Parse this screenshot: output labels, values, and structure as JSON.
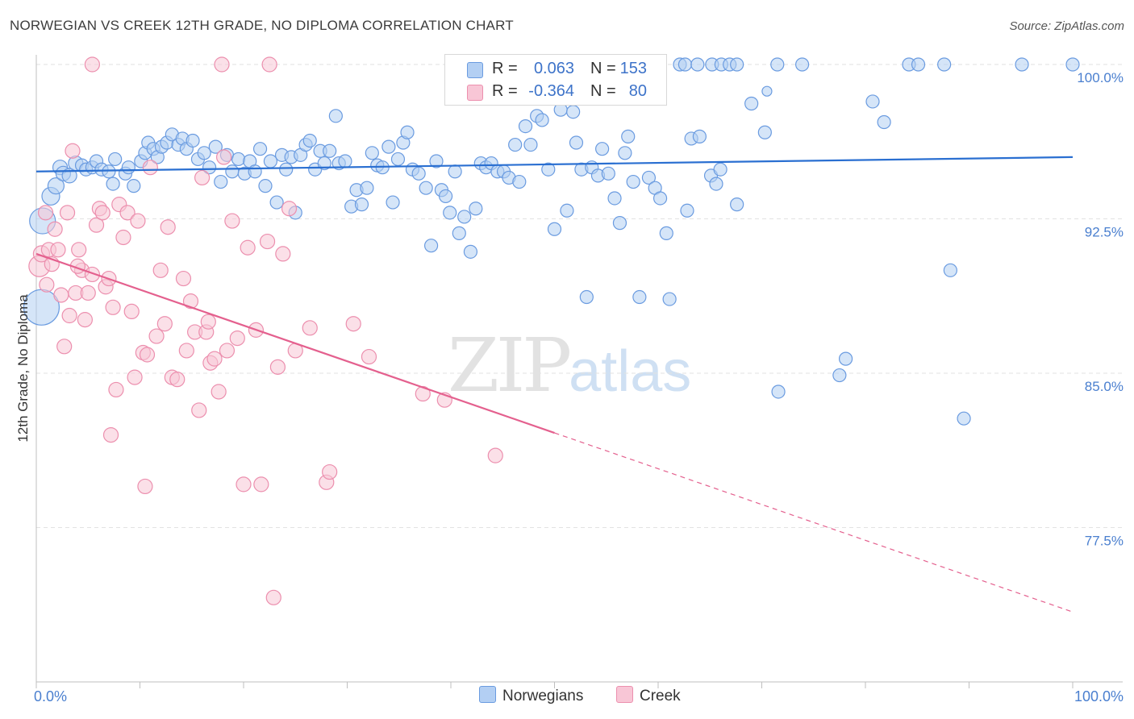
{
  "title": "NORWEGIAN VS CREEK 12TH GRADE, NO DIPLOMA CORRELATION CHART",
  "source": "Source: ZipAtlas.com",
  "watermark": {
    "zip": "ZIP",
    "atlas": "atlas"
  },
  "legend_top": [
    {
      "r_label": "R =",
      "r_value": "0.063",
      "n_label": "N =",
      "n_value": "153"
    },
    {
      "r_label": "R =",
      "r_value": "-0.364",
      "n_label": "N =",
      "n_value": "80"
    }
  ],
  "legend_bottom": [
    "Norwegians",
    "Creek"
  ],
  "colors": {
    "blue_fill": "#b3cff3",
    "blue_stroke": "#6a9be0",
    "blue_line": "#2a6fd1",
    "pink_fill": "#f8c6d6",
    "pink_stroke": "#ec8fae",
    "pink_line": "#e4608e",
    "tick_text": "#4a7fcf",
    "grid": "#e2e2e2"
  },
  "chart_data": {
    "type": "scatter",
    "title": "NORWEGIAN VS CREEK 12TH GRADE, NO DIPLOMA CORRELATION CHART",
    "xlabel": "",
    "ylabel": "12th Grade, No Diploma",
    "xlim": [
      0,
      100
    ],
    "ylim": [
      70.5,
      101.5
    ],
    "x_tick_labels": [
      "0.0%",
      "100.0%"
    ],
    "y_ticks": [
      77.5,
      85.0,
      92.5,
      100.0
    ],
    "y_tick_labels": [
      "77.5%",
      "85.0%",
      "92.5%",
      "100.0%"
    ],
    "grid": "horizontal dashed",
    "legend_position": "top-center and bottom-center",
    "series": [
      {
        "name": "Norwegians",
        "r": 0.063,
        "n": 153,
        "trend": {
          "x": [
            0,
            100
          ],
          "y": [
            94.8,
            95.5
          ],
          "style": "solid"
        },
        "points": [
          [
            0.5,
            88.2,
            22
          ],
          [
            0.6,
            92.4,
            16
          ],
          [
            1.4,
            93.6,
            11
          ],
          [
            1.9,
            94.1,
            10
          ],
          [
            2.3,
            95.0,
            9
          ],
          [
            2.6,
            94.7,
            9
          ],
          [
            3.2,
            94.6,
            9
          ],
          [
            3.8,
            95.2,
            9
          ],
          [
            4.4,
            95.1,
            8
          ],
          [
            4.8,
            94.9,
            8
          ],
          [
            5.4,
            95.0,
            8
          ],
          [
            5.8,
            95.3,
            8
          ],
          [
            6.3,
            94.9,
            8
          ],
          [
            7.0,
            94.8,
            8
          ],
          [
            7.4,
            94.2,
            8
          ],
          [
            7.6,
            95.4,
            8
          ],
          [
            8.6,
            94.7,
            8
          ],
          [
            8.9,
            95.0,
            8
          ],
          [
            9.4,
            94.1,
            8
          ],
          [
            10.1,
            95.3,
            8
          ],
          [
            10.5,
            95.7,
            8
          ],
          [
            10.8,
            96.2,
            8
          ],
          [
            11.3,
            95.9,
            8
          ],
          [
            11.7,
            95.5,
            8
          ],
          [
            12.1,
            96.0,
            8
          ],
          [
            12.6,
            96.2,
            8
          ],
          [
            13.1,
            96.6,
            8
          ],
          [
            13.7,
            96.1,
            8
          ],
          [
            14.1,
            96.4,
            8
          ],
          [
            14.5,
            95.9,
            8
          ],
          [
            15.1,
            96.3,
            8
          ],
          [
            15.6,
            95.4,
            8
          ],
          [
            16.2,
            95.7,
            8
          ],
          [
            16.7,
            95.0,
            8
          ],
          [
            17.3,
            96.0,
            8
          ],
          [
            17.8,
            94.3,
            8
          ],
          [
            18.4,
            95.6,
            8
          ],
          [
            18.9,
            94.8,
            8
          ],
          [
            19.5,
            95.4,
            8
          ],
          [
            20.1,
            94.7,
            8
          ],
          [
            20.6,
            95.3,
            8
          ],
          [
            21.1,
            94.8,
            8
          ],
          [
            21.6,
            95.9,
            8
          ],
          [
            22.1,
            94.1,
            8
          ],
          [
            22.6,
            95.3,
            8
          ],
          [
            23.2,
            93.3,
            8
          ],
          [
            23.7,
            95.6,
            8
          ],
          [
            24.1,
            94.9,
            8
          ],
          [
            24.6,
            95.5,
            8
          ],
          [
            25.0,
            92.8,
            8
          ],
          [
            25.5,
            95.6,
            8
          ],
          [
            26.0,
            96.1,
            8
          ],
          [
            26.4,
            96.3,
            8
          ],
          [
            26.9,
            94.9,
            8
          ],
          [
            27.4,
            95.8,
            8
          ],
          [
            27.8,
            95.2,
            8
          ],
          [
            28.3,
            95.8,
            8
          ],
          [
            28.9,
            97.5,
            8
          ],
          [
            29.2,
            95.2,
            8
          ],
          [
            29.8,
            95.3,
            8
          ],
          [
            30.4,
            93.1,
            8
          ],
          [
            30.9,
            93.9,
            8
          ],
          [
            31.4,
            93.2,
            8
          ],
          [
            31.9,
            94.0,
            8
          ],
          [
            32.4,
            95.7,
            8
          ],
          [
            32.9,
            95.1,
            8
          ],
          [
            33.4,
            95.0,
            8
          ],
          [
            34.0,
            96.0,
            8
          ],
          [
            34.4,
            93.3,
            8
          ],
          [
            34.9,
            95.4,
            8
          ],
          [
            35.4,
            96.2,
            8
          ],
          [
            35.8,
            96.7,
            8
          ],
          [
            36.3,
            94.9,
            8
          ],
          [
            36.9,
            94.7,
            8
          ],
          [
            37.6,
            94.0,
            8
          ],
          [
            38.1,
            91.2,
            8
          ],
          [
            38.6,
            95.3,
            8
          ],
          [
            39.1,
            93.9,
            8
          ],
          [
            39.5,
            93.6,
            8
          ],
          [
            39.9,
            92.8,
            8
          ],
          [
            40.4,
            94.8,
            8
          ],
          [
            40.8,
            91.8,
            8
          ],
          [
            41.3,
            92.6,
            8
          ],
          [
            41.9,
            90.9,
            8
          ],
          [
            42.4,
            93.0,
            8
          ],
          [
            42.9,
            95.2,
            8
          ],
          [
            43.4,
            95.0,
            8
          ],
          [
            43.9,
            95.2,
            8
          ],
          [
            44.5,
            94.8,
            8
          ],
          [
            45.1,
            94.8,
            8
          ],
          [
            45.6,
            94.5,
            8
          ],
          [
            46.2,
            96.1,
            8
          ],
          [
            46.6,
            94.3,
            8
          ],
          [
            47.2,
            97.0,
            8
          ],
          [
            47.7,
            96.1,
            8
          ],
          [
            48.3,
            97.5,
            8
          ],
          [
            48.8,
            97.3,
            8
          ],
          [
            49.4,
            94.9,
            8
          ],
          [
            50.0,
            92.0,
            8
          ],
          [
            50.6,
            97.8,
            8
          ],
          [
            51.2,
            92.9,
            8
          ],
          [
            51.8,
            97.7,
            8
          ],
          [
            52.1,
            96.2,
            8
          ],
          [
            52.6,
            94.9,
            8
          ],
          [
            53.1,
            88.7,
            8
          ],
          [
            53.6,
            95.0,
            8
          ],
          [
            54.2,
            94.6,
            8
          ],
          [
            54.6,
            95.9,
            8
          ],
          [
            55.2,
            94.7,
            8
          ],
          [
            55.8,
            93.5,
            8
          ],
          [
            56.3,
            92.3,
            8
          ],
          [
            56.8,
            95.7,
            8
          ],
          [
            57.1,
            96.5,
            8
          ],
          [
            57.6,
            94.3,
            8
          ],
          [
            58.2,
            88.7,
            8
          ],
          [
            59.1,
            94.5,
            8
          ],
          [
            59.7,
            94.0,
            8
          ],
          [
            60.2,
            93.5,
            8
          ],
          [
            60.8,
            91.8,
            8
          ],
          [
            61.1,
            88.6,
            8
          ],
          [
            62.8,
            92.9,
            8
          ],
          [
            63.2,
            96.4,
            8
          ],
          [
            64.0,
            96.5,
            8
          ],
          [
            65.1,
            94.6,
            8
          ],
          [
            65.6,
            94.2,
            8
          ],
          [
            66.0,
            94.9,
            8
          ],
          [
            67.6,
            93.2,
            8
          ],
          [
            69.0,
            98.1,
            8
          ],
          [
            70.3,
            96.7,
            8
          ],
          [
            70.5,
            98.7,
            6
          ],
          [
            71.6,
            84.1,
            8
          ],
          [
            77.5,
            84.9,
            8
          ],
          [
            78.1,
            85.7,
            8
          ],
          [
            80.7,
            98.2,
            8
          ],
          [
            81.8,
            97.2,
            8
          ],
          [
            84.2,
            100.0,
            8
          ],
          [
            85.1,
            100.0,
            8
          ],
          [
            87.6,
            100.0,
            8
          ],
          [
            88.2,
            90.0,
            8
          ],
          [
            89.5,
            82.8,
            8
          ],
          [
            59.6,
            100.0,
            8
          ],
          [
            62.1,
            100.0,
            8
          ],
          [
            62.6,
            100.0,
            8
          ],
          [
            63.8,
            100.0,
            8
          ],
          [
            65.2,
            100.0,
            8
          ],
          [
            66.1,
            100.0,
            8
          ],
          [
            66.9,
            100.0,
            8
          ],
          [
            67.6,
            100.0,
            8
          ],
          [
            71.5,
            100.0,
            8
          ],
          [
            73.9,
            100.0,
            8
          ],
          [
            95.1,
            100.0,
            8
          ],
          [
            100.0,
            100.0,
            8
          ]
        ]
      },
      {
        "name": "Creek",
        "r": -0.364,
        "n": 80,
        "trend": {
          "x": [
            0,
            50
          ],
          "y": [
            90.8,
            82.1
          ],
          "style": "solid",
          "extension": {
            "x": [
              50,
              100
            ],
            "y": [
              82.1,
              73.4
            ],
            "style": "dashed"
          }
        },
        "points": [
          [
            0.3,
            90.2,
            13
          ],
          [
            0.5,
            90.8,
            10
          ],
          [
            0.9,
            92.8,
            9
          ],
          [
            1.0,
            89.3,
            9
          ],
          [
            1.2,
            91.0,
            9
          ],
          [
            1.5,
            90.3,
            9
          ],
          [
            1.8,
            92.0,
            9
          ],
          [
            2.1,
            91.0,
            9
          ],
          [
            2.4,
            88.8,
            9
          ],
          [
            2.7,
            86.3,
            9
          ],
          [
            3.0,
            92.8,
            9
          ],
          [
            3.2,
            87.8,
            9
          ],
          [
            3.5,
            95.8,
            9
          ],
          [
            3.8,
            88.9,
            9
          ],
          [
            4.1,
            91.0,
            9
          ],
          [
            4.4,
            90.0,
            9
          ],
          [
            4.7,
            87.6,
            9
          ],
          [
            5.0,
            88.9,
            9
          ],
          [
            5.4,
            89.8,
            9
          ],
          [
            5.8,
            92.2,
            9
          ],
          [
            6.1,
            93.0,
            9
          ],
          [
            6.4,
            92.8,
            9
          ],
          [
            6.7,
            89.2,
            9
          ],
          [
            7.0,
            89.6,
            9
          ],
          [
            7.4,
            88.2,
            9
          ],
          [
            7.7,
            84.2,
            9
          ],
          [
            8.0,
            93.2,
            9
          ],
          [
            8.4,
            91.6,
            9
          ],
          [
            8.8,
            92.8,
            9
          ],
          [
            9.2,
            88.0,
            9
          ],
          [
            9.5,
            84.8,
            9
          ],
          [
            9.8,
            92.4,
            9
          ],
          [
            10.3,
            86.0,
            9
          ],
          [
            10.7,
            85.9,
            9
          ],
          [
            11.0,
            95.0,
            9
          ],
          [
            11.6,
            86.8,
            9
          ],
          [
            12.0,
            90.0,
            9
          ],
          [
            12.4,
            87.4,
            9
          ],
          [
            12.7,
            92.1,
            9
          ],
          [
            13.1,
            84.8,
            9
          ],
          [
            13.6,
            84.7,
            9
          ],
          [
            14.2,
            89.6,
            9
          ],
          [
            14.5,
            86.1,
            9
          ],
          [
            14.9,
            88.5,
            9
          ],
          [
            15.3,
            87.0,
            9
          ],
          [
            15.7,
            83.2,
            9
          ],
          [
            16.0,
            94.5,
            9
          ],
          [
            16.4,
            87.0,
            9
          ],
          [
            16.8,
            85.5,
            9
          ],
          [
            17.2,
            85.7,
            9
          ],
          [
            17.6,
            84.1,
            9
          ],
          [
            18.1,
            95.5,
            9
          ],
          [
            18.4,
            86.1,
            9
          ],
          [
            18.9,
            92.4,
            9
          ],
          [
            19.4,
            86.7,
            9
          ],
          [
            20.0,
            79.6,
            9
          ],
          [
            20.4,
            91.1,
            9
          ],
          [
            21.2,
            87.1,
            9
          ],
          [
            21.7,
            79.6,
            9
          ],
          [
            22.3,
            91.4,
            9
          ],
          [
            22.9,
            74.1,
            9
          ],
          [
            23.3,
            85.3,
            9
          ],
          [
            23.8,
            90.8,
            9
          ],
          [
            24.4,
            93.0,
            9
          ],
          [
            25.0,
            86.1,
            9
          ],
          [
            26.4,
            87.2,
            9
          ],
          [
            28.0,
            79.7,
            9
          ],
          [
            30.6,
            87.4,
            9
          ],
          [
            32.1,
            85.8,
            9
          ],
          [
            37.3,
            84.0,
            9
          ],
          [
            39.4,
            83.7,
            9
          ],
          [
            44.3,
            81.0,
            9
          ],
          [
            5.4,
            100.0,
            9
          ],
          [
            7.2,
            82.0,
            9
          ],
          [
            10.5,
            79.5,
            9
          ],
          [
            16.6,
            87.5,
            9
          ],
          [
            17.9,
            100.0,
            9
          ],
          [
            22.5,
            100.0,
            9
          ],
          [
            28.3,
            80.2,
            9
          ],
          [
            4.0,
            90.2,
            9
          ]
        ]
      }
    ]
  }
}
